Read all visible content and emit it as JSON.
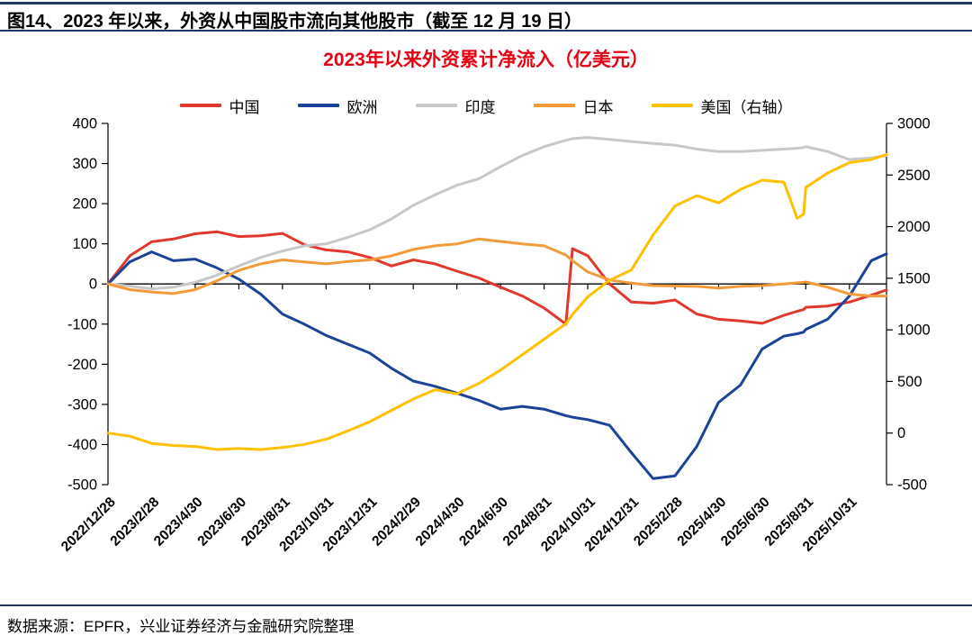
{
  "header": {
    "title": "图14、2023 年以来，外资从中国股市流向其他股市（截至 12 月 19 日）",
    "accent_rule_color": "#1f3864"
  },
  "footer": {
    "source": "数据来源：EPFR，兴业证券经济与金融研究院整理"
  },
  "chart_data": {
    "type": "line",
    "title": "2023年以来外资累计净流入（亿美元）",
    "title_color": "#e60012",
    "legend_position": "top",
    "grid": false,
    "x_axis": {
      "labels": [
        "2022/12/28",
        "2023/2/28",
        "2023/4/30",
        "2023/6/30",
        "2023/8/31",
        "2023/10/31",
        "2023/12/31",
        "2024/2/29",
        "2024/4/30",
        "2024/6/30",
        "2024/8/31",
        "2024/10/31",
        "2024/12/31",
        "2025/2/28",
        "2025/4/30",
        "2025/6/30",
        "2025/8/31",
        "2025/10/31"
      ],
      "label_months": [
        0,
        2,
        4,
        6,
        8,
        10,
        12,
        14,
        16,
        18,
        20,
        22,
        24,
        26,
        28,
        30,
        32,
        34
      ],
      "total_months": 35.7
    },
    "y_left": {
      "min": -500,
      "max": 400,
      "ticks": [
        400,
        300,
        200,
        100,
        0,
        -100,
        -200,
        -300,
        -400,
        -500
      ]
    },
    "y_right": {
      "min": -500,
      "max": 3000,
      "ticks": [
        3000,
        2500,
        2000,
        1500,
        1000,
        500,
        0,
        -500
      ]
    },
    "x_months": [
      0,
      1,
      2,
      3,
      4,
      5,
      6,
      7,
      8,
      9,
      10,
      11,
      12,
      13,
      14,
      15,
      16,
      17,
      18,
      19,
      20,
      21,
      21.3,
      22,
      23,
      24,
      25,
      26,
      27,
      28,
      29,
      30,
      31,
      31.6,
      31.9,
      32,
      33,
      34,
      35,
      35.7
    ],
    "series": [
      {
        "key": "china",
        "name": "中国",
        "color": "#e0382e",
        "axis": "left",
        "values": [
          0,
          70,
          105,
          112,
          125,
          130,
          118,
          120,
          126,
          98,
          85,
          80,
          66,
          45,
          60,
          50,
          32,
          15,
          -8,
          -30,
          -60,
          -100,
          88,
          70,
          0,
          -45,
          -48,
          -40,
          -75,
          -88,
          -92,
          -98,
          -78,
          -68,
          -64,
          -58,
          -55,
          -45,
          -28,
          -15
        ]
      },
      {
        "key": "europe",
        "name": "欧洲",
        "color": "#1b4397",
        "axis": "left",
        "values": [
          0,
          55,
          80,
          58,
          62,
          40,
          12,
          -25,
          -75,
          -100,
          -128,
          -150,
          -172,
          -210,
          -242,
          -255,
          -272,
          -290,
          -312,
          -305,
          -312,
          -328,
          -332,
          -338,
          -352,
          -420,
          -485,
          -478,
          -405,
          -295,
          -252,
          -162,
          -130,
          -124,
          -120,
          -113,
          -88,
          -30,
          58,
          75
        ]
      },
      {
        "key": "india",
        "name": "印度",
        "color": "#c8c8c8",
        "axis": "left",
        "values": [
          0,
          -5,
          -12,
          -8,
          4,
          22,
          45,
          66,
          82,
          95,
          100,
          116,
          135,
          162,
          196,
          222,
          246,
          262,
          292,
          320,
          342,
          358,
          362,
          365,
          360,
          355,
          350,
          346,
          336,
          330,
          330,
          333,
          336,
          338,
          340,
          342,
          330,
          310,
          314,
          320
        ]
      },
      {
        "key": "japan",
        "name": "日本",
        "color": "#f29b38",
        "axis": "left",
        "values": [
          0,
          -14,
          -20,
          -24,
          -14,
          8,
          34,
          50,
          60,
          55,
          50,
          56,
          60,
          70,
          86,
          95,
          100,
          112,
          106,
          100,
          95,
          72,
          58,
          30,
          10,
          2,
          -4,
          -5,
          -6,
          -10,
          -6,
          -4,
          0,
          3,
          4,
          5,
          -8,
          -25,
          -30,
          -30
        ]
      },
      {
        "key": "us",
        "name": "美国（右轴）",
        "color": "#ffc000",
        "axis": "right",
        "values": [
          0,
          -30,
          -100,
          -120,
          -130,
          -160,
          -150,
          -160,
          -140,
          -110,
          -60,
          20,
          110,
          220,
          330,
          420,
          380,
          480,
          610,
          760,
          910,
          1060,
          1150,
          1320,
          1480,
          1580,
          1920,
          2200,
          2300,
          2230,
          2360,
          2450,
          2430,
          2080,
          2120,
          2380,
          2520,
          2620,
          2650,
          2700
        ]
      }
    ]
  }
}
